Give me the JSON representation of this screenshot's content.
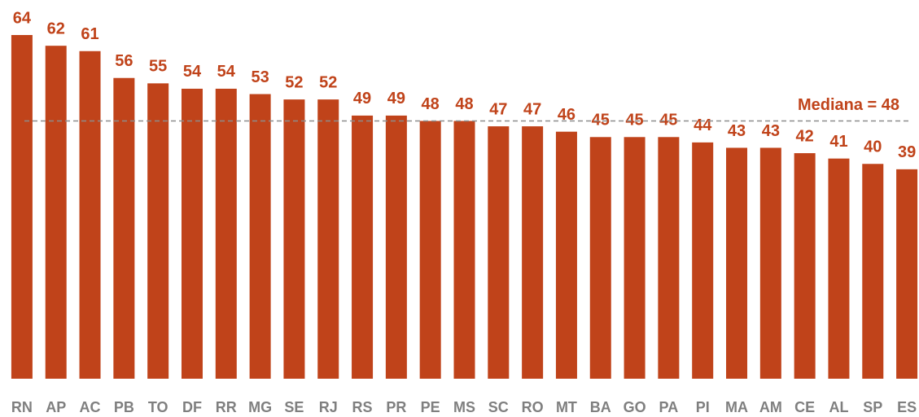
{
  "chart_data": {
    "type": "bar",
    "categories": [
      "RN",
      "AP",
      "AC",
      "PB",
      "TO",
      "DF",
      "RR",
      "MG",
      "SE",
      "RJ",
      "RS",
      "PR",
      "PE",
      "MS",
      "SC",
      "RO",
      "MT",
      "BA",
      "GO",
      "PA",
      "PI",
      "MA",
      "AM",
      "CE",
      "AL",
      "SP",
      "ES"
    ],
    "values": [
      64,
      62,
      61,
      56,
      55,
      54,
      54,
      53,
      52,
      52,
      49,
      49,
      48,
      48,
      47,
      47,
      46,
      45,
      45,
      45,
      44,
      43,
      43,
      42,
      41,
      40,
      39
    ],
    "color": "#c0431a",
    "ylim": [
      0,
      64
    ],
    "median": 48,
    "annotation": "Mediana = 48"
  }
}
